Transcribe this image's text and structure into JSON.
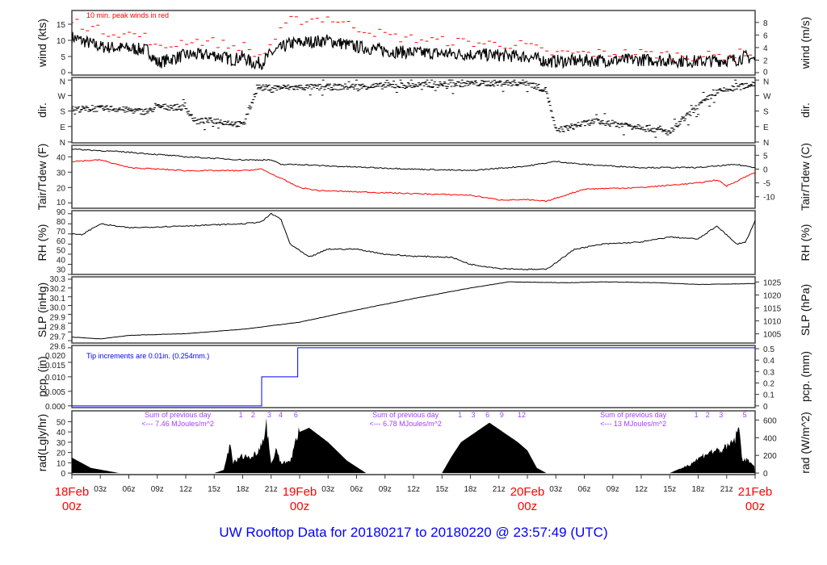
{
  "title": "UW Rooftop Data for 20180217  to  20180220 @ 23:57:49  (UTC)",
  "colors": {
    "wind": "#000000",
    "gust": "#ff0000",
    "tair": "#000000",
    "tdew": "#ff0000",
    "pcp": "#0000ff",
    "rad_labels": "#a040ff",
    "day_labels": "#ff0000",
    "title": "#0000ff"
  },
  "chart_data": [
    {
      "type": "line",
      "name": "wind",
      "ylabel": "wind (kts)",
      "ylabel_right": "wind (m/s)",
      "ylim": [
        -0.75,
        19.25
      ],
      "yticks": [
        0,
        5,
        10,
        15
      ],
      "yticks_right": [
        0,
        2,
        4,
        6,
        8
      ],
      "annotation": "10 min. peak winds in red",
      "series": [
        {
          "name": "wind speed",
          "x": [
            0,
            3,
            6,
            8,
            9,
            12,
            15,
            17,
            18,
            19,
            20,
            21,
            23,
            27,
            30,
            34,
            38,
            44,
            48,
            50,
            60,
            66,
            70,
            71,
            72
          ],
          "values": [
            11,
            8,
            7.5,
            7,
            3,
            5.5,
            5.5,
            4,
            5,
            3,
            3,
            6,
            9,
            10,
            8,
            6.5,
            6,
            5.5,
            5,
            3.5,
            4,
            3.5,
            4,
            5,
            4
          ]
        },
        {
          "name": "peak gust",
          "x": [
            0,
            3,
            6,
            8,
            9,
            12,
            15,
            17,
            18,
            19,
            20,
            21,
            23,
            27,
            30,
            34,
            38,
            44,
            48,
            50,
            60,
            66,
            70,
            71,
            72
          ],
          "values": [
            16,
            13,
            12,
            11,
            7,
            10,
            9.5,
            8,
            8.5,
            6,
            5,
            9,
            16,
            17,
            14,
            11,
            10,
            9,
            8.5,
            6,
            6,
            5,
            5.5,
            6.5,
            6
          ]
        }
      ]
    },
    {
      "type": "scatter",
      "name": "dir",
      "ylabel": "dir.",
      "ylim": [
        -5,
        375
      ],
      "yticks": [
        0,
        90,
        180,
        270,
        360
      ],
      "ytick_labels": [
        "N",
        "E",
        "S",
        "W",
        "N"
      ],
      "series": [
        {
          "name": "wind direction",
          "x": [
            0,
            4,
            8,
            9,
            12,
            13,
            15,
            18,
            19,
            19.5,
            20,
            28,
            36,
            42,
            48,
            50,
            51,
            55,
            60,
            63,
            66,
            68,
            72
          ],
          "values": [
            190,
            195,
            175,
            205,
            200,
            120,
            125,
            100,
            230,
            320,
            315,
            320,
            330,
            340,
            345,
            300,
            65,
            120,
            90,
            55,
            210,
            290,
            340
          ]
        }
      ]
    },
    {
      "type": "line",
      "name": "temp",
      "ylabel": "Tair/Tdew (F)",
      "ylabel_right": "Tair/Tdew (C)",
      "ylim": [
        6.5,
        47.5
      ],
      "yticks": [
        10,
        20,
        30,
        40
      ],
      "yticks_right": [
        -10,
        -5,
        0,
        5
      ],
      "series": [
        {
          "name": "Tair",
          "x": [
            0,
            6,
            12,
            18,
            21,
            22,
            24,
            27,
            36,
            42,
            48,
            51,
            54,
            60,
            66,
            70,
            72
          ],
          "values": [
            45,
            43,
            40,
            38,
            38,
            35,
            35,
            34,
            32,
            31,
            34,
            37,
            35,
            33,
            33,
            35,
            33
          ]
        },
        {
          "name": "Tdew",
          "x": [
            0,
            3,
            6,
            12,
            18,
            20,
            22,
            24,
            26,
            36,
            42,
            45,
            48,
            50,
            51,
            54,
            60,
            66,
            68,
            69,
            72
          ],
          "values": [
            37,
            38,
            33,
            31,
            31,
            32,
            26,
            20,
            18,
            16,
            15,
            12,
            12,
            11,
            13,
            19,
            20,
            23,
            25,
            21,
            30
          ]
        }
      ]
    },
    {
      "type": "line",
      "name": "rh",
      "ylabel": "RH (%)",
      "ylabel_right": "RH (%)",
      "ylim": [
        30,
        93
      ],
      "yticks": [
        30,
        40,
        50,
        60,
        70,
        80,
        90
      ],
      "series": [
        {
          "name": "RH",
          "x": [
            0,
            1,
            3,
            6,
            12,
            18,
            20,
            21,
            22,
            23,
            25,
            27,
            30,
            33,
            36,
            40,
            42,
            45,
            48,
            50,
            53,
            56,
            60,
            63,
            66,
            68,
            70,
            71,
            72
          ],
          "values": [
            70,
            69,
            80,
            76,
            78,
            80,
            82,
            90,
            85,
            60,
            47,
            55,
            55,
            50,
            48,
            47,
            40,
            36,
            35,
            35,
            55,
            60,
            62,
            67,
            65,
            78,
            60,
            62,
            83
          ]
        }
      ]
    },
    {
      "type": "line",
      "name": "slp",
      "ylabel": "SLP (inHg)",
      "ylabel_right": "SLP (hPa)",
      "ylim": [
        29.573,
        30.327
      ],
      "yticks": [
        29.6,
        29.7,
        29.8,
        29.9,
        30.0,
        30.1,
        30.2,
        30.3
      ],
      "ytick_labels": [
        "29.6",
        "29.7",
        "29.8",
        "29.9",
        "30.0",
        "30.1",
        "30.2",
        "30.3"
      ],
      "yticks_right": [
        1005,
        1010,
        1015,
        1020,
        1025
      ],
      "series": [
        {
          "name": "SLP",
          "x": [
            0,
            3,
            6,
            12,
            18,
            24,
            30,
            36,
            42,
            46,
            52,
            56,
            62,
            66,
            72
          ],
          "values": [
            29.64,
            29.62,
            29.66,
            29.68,
            29.73,
            29.81,
            29.95,
            30.08,
            30.2,
            30.27,
            30.26,
            30.27,
            30.26,
            30.24,
            30.25
          ]
        }
      ]
    },
    {
      "type": "line",
      "name": "pcp",
      "ylabel": "pcp. (in)",
      "ylabel_right": "pcp. (mm)",
      "ylim": [
        -0.0006,
        0.0208
      ],
      "yticks": [
        0,
        0.005,
        0.01,
        0.015,
        0.02
      ],
      "ytick_labels": [
        "0.000",
        "0.005",
        "0.010",
        "0.015",
        "0.020"
      ],
      "yticks_right": [
        0,
        0.1,
        0.2,
        0.3,
        0.4,
        0.5
      ],
      "annotation": "Tip increments are 0.01in. (0.254mm.)",
      "series": [
        {
          "name": "cumulative precip",
          "x": [
            0,
            20,
            20,
            23.8,
            23.8,
            72
          ],
          "values": [
            0,
            0,
            0.01,
            0.01,
            0.02,
            0.02
          ]
        }
      ]
    },
    {
      "type": "area",
      "name": "rad",
      "ylabel": "rad(Lgly/hr)",
      "ylabel_right": "rad (W/m^2)",
      "ylim": [
        -1.5,
        60.5
      ],
      "yticks": [
        0,
        10,
        20,
        30,
        40,
        50
      ],
      "yticks_right": [
        0,
        200,
        400,
        600
      ],
      "series": [
        {
          "name": "solar radiation",
          "x": [
            0,
            1,
            2,
            5,
            15,
            16,
            16.7,
            17,
            18,
            19,
            20,
            20.5,
            21,
            21.5,
            22,
            23,
            24,
            25,
            27,
            29,
            31,
            39,
            40,
            41,
            44,
            47,
            48,
            49,
            50,
            63,
            65,
            67,
            69,
            70,
            70.3,
            70.6,
            72
          ],
          "values": [
            15,
            10,
            5,
            0,
            0,
            3,
            30,
            10,
            17,
            15,
            28,
            50,
            8,
            25,
            10,
            12,
            40,
            44,
            30,
            12,
            0,
            0,
            16,
            30,
            49,
            30,
            22,
            5,
            0,
            0,
            8,
            20,
            24,
            35,
            45,
            15,
            8
          ]
        }
      ],
      "day_sums": [
        {
          "line1": "Sum of previous day",
          "line2": "<--- 7.46 MJoules/m^2",
          "x": 11.5
        },
        {
          "line1": "Sum of previous day",
          "line2": "<--- 6.78 MJoules/m^2",
          "x": 35.5
        },
        {
          "line1": "Sum of previous day",
          "line2": "<--- 13 MJoules/m^2",
          "x": 59.5
        }
      ],
      "hour_marks": [
        {
          "label": "1",
          "x": 17.8
        },
        {
          "label": "2",
          "x": 19.1
        },
        {
          "label": "3",
          "x": 20.8
        },
        {
          "label": "4",
          "x": 22
        },
        {
          "label": "6",
          "x": 23.6
        },
        {
          "label": "1",
          "x": 40.9
        },
        {
          "label": "3",
          "x": 42.3
        },
        {
          "label": "6",
          "x": 43.8
        },
        {
          "label": "9",
          "x": 45.3
        },
        {
          "label": "12",
          "x": 47.4
        },
        {
          "label": "1",
          "x": 65.8
        },
        {
          "label": "2",
          "x": 67
        },
        {
          "label": "3",
          "x": 68.4
        },
        {
          "label": "5",
          "x": 70.9
        }
      ]
    }
  ],
  "xaxis": {
    "range_hours": [
      0,
      72
    ],
    "hour_ticks": [
      "03z",
      "06z",
      "09z",
      "12z",
      "15z",
      "18z",
      "21z"
    ],
    "days": [
      {
        "label": "18Feb",
        "sub": "00z",
        "x": 0
      },
      {
        "label": "19Feb",
        "sub": "00z",
        "x": 24
      },
      {
        "label": "20Feb",
        "sub": "00z",
        "x": 48
      },
      {
        "label": "21Feb",
        "sub": "00z",
        "x": 72
      }
    ]
  }
}
